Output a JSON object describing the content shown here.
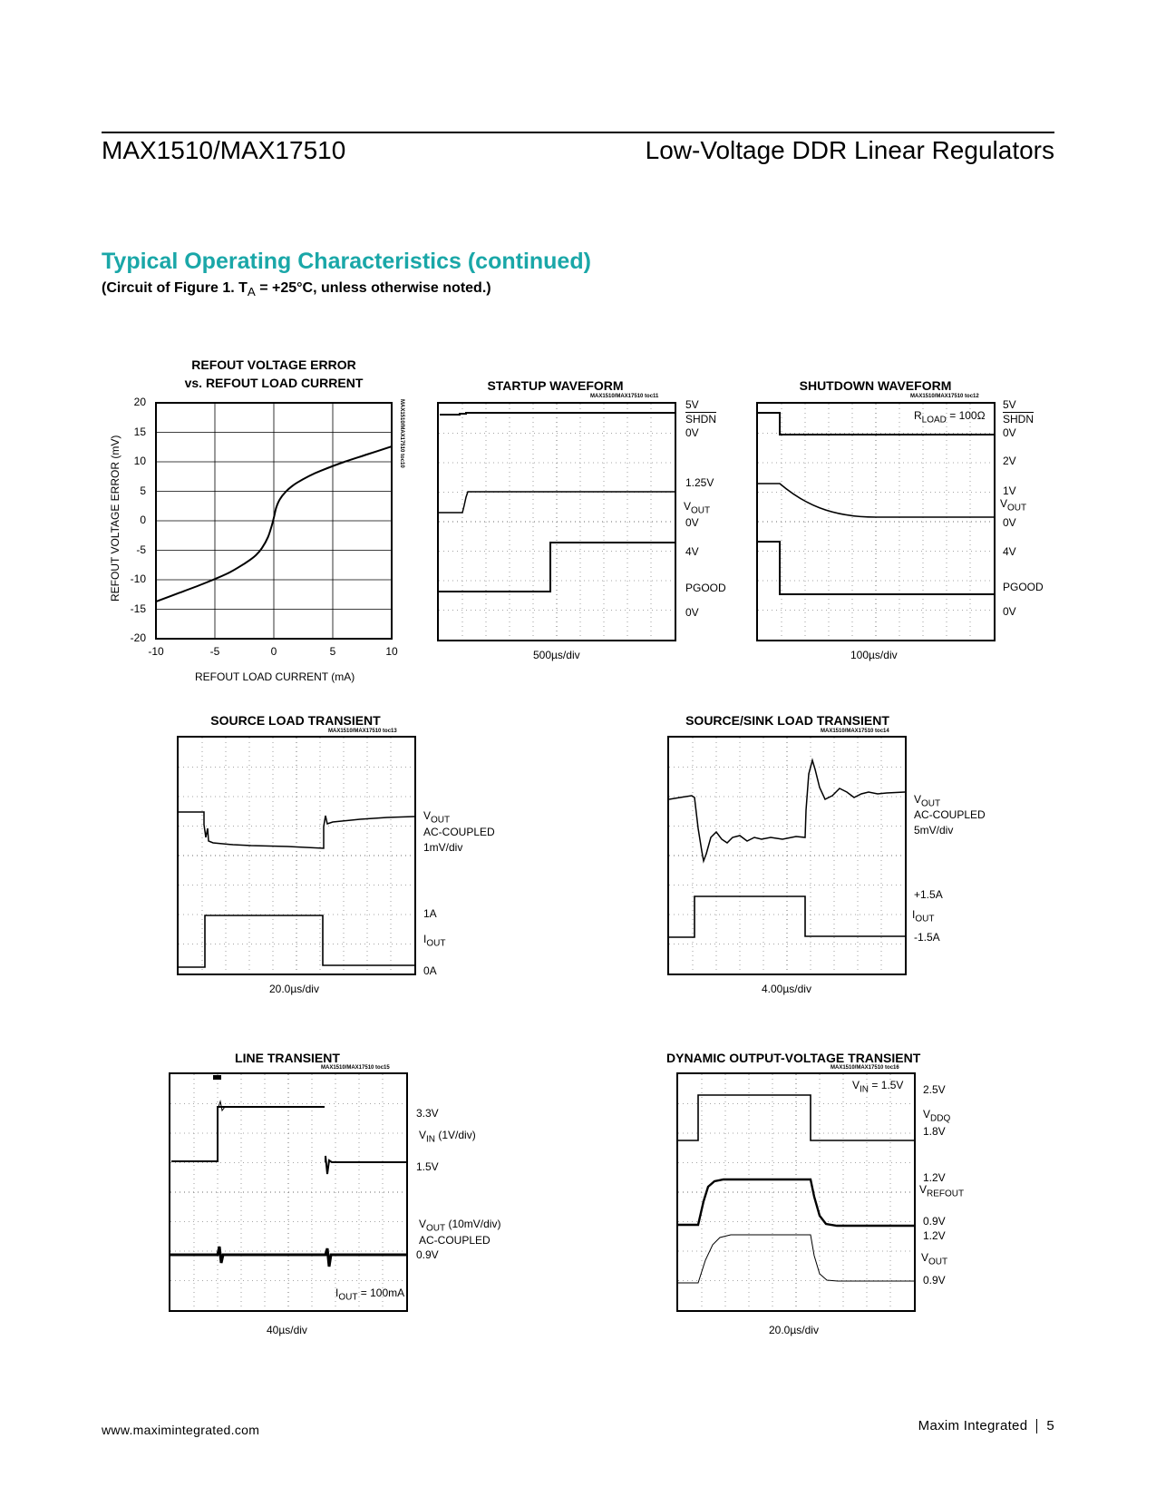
{
  "header": {
    "left": "MAX1510/MAX17510",
    "right": "Low-Voltage DDR Linear Regulators"
  },
  "section": {
    "title": "Typical Operating Characteristics (continued)",
    "subtitle_pre": "(Circuit of Figure 1. T",
    "subtitle_sub": "A",
    "subtitle_post": " = +25°C, unless otherwise noted.)"
  },
  "charts": {
    "refout": {
      "title_line1": "REFOUT VOLTAGE ERROR",
      "title_line2": "vs. REFOUT LOAD CURRENT",
      "code": "MAX1510/MAX17510 toc10",
      "ylabel": "REFOUT VOLTAGE ERROR (mV)",
      "xlabel": "REFOUT LOAD CURRENT (mA)",
      "yticks": [
        "20",
        "15",
        "10",
        "5",
        "0",
        "-5",
        "-10",
        "-15",
        "-20"
      ],
      "xticks": [
        "-10",
        "-5",
        "0",
        "5",
        "10"
      ]
    },
    "startup": {
      "title": "STARTUP WAVEFORM",
      "code": "MAX1510/MAX17510 toc11",
      "timebase": "500µs/div",
      "labels": {
        "v5": "5V",
        "shdn": "SHDN",
        "ov1": "0V",
        "v125": "1.25V",
        "vout_main": "V",
        "vout_sub": "OUT",
        "ov2": "0V",
        "v4": "4V",
        "pgood": "PGOOD",
        "ov3": "0V"
      }
    },
    "shutdown": {
      "title": "SHUTDOWN WAVEFORM",
      "code": "MAX1510/MAX17510 toc12",
      "timebase": "100µs/div",
      "rload_main": "R",
      "rload_sub": "LOAD",
      "rload_val": " = 100Ω",
      "labels": {
        "v5": "5V",
        "shdn": "SHDN",
        "ov1": "0V",
        "v2": "2V",
        "v1": "1V",
        "vout_main": "V",
        "vout_sub": "OUT",
        "ov2": "0V",
        "v4": "4V",
        "pgood": "PGOOD",
        "ov3": "0V"
      }
    },
    "source": {
      "title": "SOURCE LOAD TRANSIENT",
      "code": "MAX1510/MAX17510 toc13",
      "timebase": "20.0µs/div",
      "labels": {
        "vout_main": "V",
        "vout_sub": "OUT",
        "accoupled": "AC-COUPLED",
        "div": "1mV/div",
        "a1": "1A",
        "iout_main": "I",
        "iout_sub": "OUT",
        "a0": "0A"
      }
    },
    "sourcesink": {
      "title": "SOURCE/SINK LOAD TRANSIENT",
      "code": "MAX1510/MAX17510 toc14",
      "timebase": "4.00µs/div",
      "labels": {
        "vout_main": "V",
        "vout_sub": "OUT",
        "accoupled": "AC-COUPLED",
        "div": "5mV/div",
        "ap": "+1.5A",
        "iout_main": "I",
        "iout_sub": "OUT",
        "an": "-1.5A"
      }
    },
    "line": {
      "title": "LINE TRANSIENT",
      "code": "MAX1510/MAX17510 toc15",
      "timebase": "40µs/div",
      "iout_main": "I",
      "iout_sub": "OUT",
      "iout_val": " = 100mA",
      "labels": {
        "v33": "3.3V",
        "vin_main": "V",
        "vin_sub": "IN",
        "vin_div": " (1V/div)",
        "v15": "1.5V",
        "vout_main": "V",
        "vout_sub": "OUT",
        "vout_div": " (10mV/div)",
        "accoupled": "AC-COUPLED",
        "v09": "0.9V"
      }
    },
    "dynamic": {
      "title": "DYNAMIC OUTPUT-VOLTAGE TRANSIENT",
      "code": "MAX1510/MAX17510 toc16",
      "timebase": "20.0µs/div",
      "vin_main": "V",
      "vin_sub": "IN",
      "vin_val": " = 1.5V",
      "labels": {
        "v25": "2.5V",
        "vddq_main": "V",
        "vddq_sub": "DDQ",
        "v18": "1.8V",
        "v12a": "1.2V",
        "vref_main": "V",
        "vref_sub": "REFOUT",
        "v09a": "0.9V",
        "v12b": "1.2V",
        "vout_main": "V",
        "vout_sub": "OUT",
        "v09b": "0.9V"
      }
    }
  },
  "chart_data": {
    "type": "line",
    "title": "REFOUT VOLTAGE ERROR vs. REFOUT LOAD CURRENT",
    "xlabel": "REFOUT LOAD CURRENT (mA)",
    "ylabel": "REFOUT VOLTAGE ERROR (mV)",
    "xlim": [
      -10,
      10
    ],
    "ylim": [
      -20,
      20
    ],
    "grid": true,
    "x": [
      -10,
      -8,
      -6,
      -4,
      -3,
      -2,
      -1.5,
      -1,
      -0.5,
      -0.2,
      0,
      0.2,
      0.5,
      1,
      1.5,
      2,
      3,
      4,
      6,
      8,
      10
    ],
    "y": [
      -13.7,
      -12.2,
      -10.7,
      -9.0,
      -7.9,
      -6.6,
      -5.8,
      -4.6,
      -2.8,
      -1.0,
      0.5,
      2.2,
      3.6,
      4.9,
      5.8,
      6.5,
      7.6,
      8.5,
      10.0,
      11.3,
      12.6
    ]
  },
  "footer": {
    "url": "www.maximintegrated.com",
    "company": "Maxim Integrated",
    "page": "5"
  }
}
